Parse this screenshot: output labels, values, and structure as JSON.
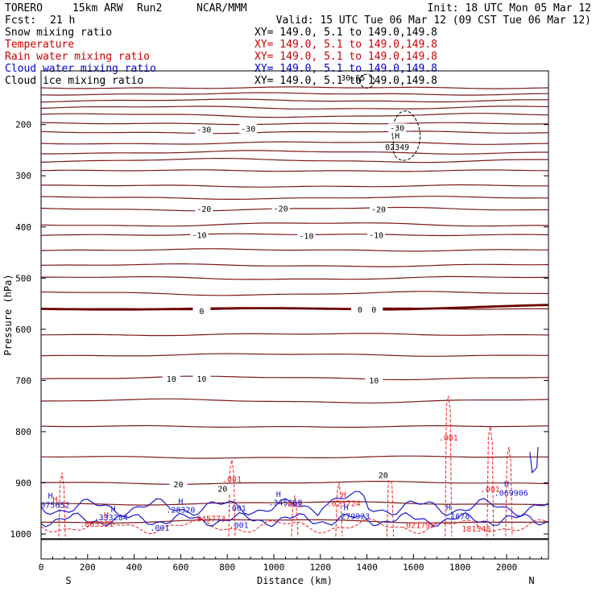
{
  "header": {
    "model": "TORERO",
    "grid": "15km ARW",
    "run": "Run2",
    "org": "NCAR/MMM",
    "init": "Init: 18 UTC Mon 05 Mar 12",
    "fcst_label": "Fcst:",
    "fcst_value": "21 h",
    "valid": "Valid: 15 UTC Tue 06 Mar 12 (09 CST Tue 06 Mar 12)"
  },
  "legend": [
    {
      "name": "Snow mixing ratio",
      "range": "XY= 149.0,  5.1 to 149.0,149.8",
      "color": "#000000"
    },
    {
      "name": "Temperature",
      "range": "XY= 149.0,  5.1 to 149.0,149.8",
      "color": "#cc0000"
    },
    {
      "name": "Rain water mixing ratio",
      "range": "XY= 149.0,  5.1 to 149.0,149.8",
      "color": "#cc0000"
    },
    {
      "name": "Cloud water mixing ratio",
      "range": "XY= 149.0,  5.1 to 149.0,149.8",
      "color": "#0000cc"
    },
    {
      "name": "Cloud ice mixing ratio",
      "range": "XY= 149.0,  5.1 to 149.0,149.8",
      "color": "#000000"
    }
  ],
  "chart_data": {
    "type": "line",
    "xlabel": "Distance (km)",
    "ylabel": "Pressure (hPa)",
    "xlim": [
      0,
      2180
    ],
    "ylim": [
      1050,
      100
    ],
    "y_scale": "pressure",
    "x_ticks": [
      0,
      200,
      400,
      600,
      800,
      1000,
      1200,
      1400,
      1600,
      1800,
      2000
    ],
    "y_ticks": [
      200,
      300,
      400,
      500,
      600,
      700,
      800,
      900,
      1000
    ],
    "x_endpoint_left": "S",
    "x_endpoint_right": "N",
    "surface_pressure": 1010,
    "colors": {
      "temperature": "#7a1a1a",
      "zero_isotherm": "#6b0000",
      "rain": "#ee2222",
      "cloud_water": "#1a1acc",
      "ice": "#000000"
    },
    "isotherm_levels": [
      {
        "value": -30,
        "p": 200
      },
      {
        "value": -30,
        "p": 320
      },
      {
        "value": -20,
        "p": 365
      },
      {
        "value": -10,
        "p": 415
      },
      {
        "value": 0,
        "p": 560
      },
      {
        "value": 10,
        "p": 695
      },
      {
        "value": 20,
        "p": 900
      }
    ],
    "temperature_lines_p": [
      128,
      140,
      153,
      167,
      182,
      198,
      215,
      236,
      254,
      270,
      290,
      320,
      343,
      365,
      395,
      415,
      445,
      475,
      500,
      530,
      560,
      610,
      650,
      695,
      740,
      790,
      850,
      900,
      940,
      975
    ],
    "temperature_labels": [
      {
        "text": "-30",
        "x": 700,
        "p": 210
      },
      {
        "text": "-30",
        "x": 890,
        "p": 208
      },
      {
        "text": "-30",
        "x": 1530,
        "p": 207
      },
      {
        "text": "-20",
        "x": 700,
        "p": 365
      },
      {
        "text": "-20",
        "x": 1030,
        "p": 364
      },
      {
        "text": "-20",
        "x": 1450,
        "p": 366
      },
      {
        "text": "-10",
        "x": 680,
        "p": 416
      },
      {
        "text": "-10",
        "x": 1140,
        "p": 418
      },
      {
        "text": "-10",
        "x": 1440,
        "p": 416
      },
      {
        "text": "0",
        "x": 690,
        "p": 565
      },
      {
        "text": "0",
        "x": 1370,
        "p": 562
      },
      {
        "text": "0",
        "x": 1430,
        "p": 562
      },
      {
        "text": "10",
        "x": 560,
        "p": 697
      },
      {
        "text": "10",
        "x": 690,
        "p": 697
      },
      {
        "text": "10",
        "x": 1430,
        "p": 700
      },
      {
        "text": "20",
        "x": 590,
        "p": 903
      },
      {
        "text": "20",
        "x": 780,
        "p": 912
      },
      {
        "text": "20",
        "x": 1470,
        "p": 885
      }
    ],
    "ice_labels": [
      {
        "text": "30.65",
        "x": 1340,
        "p": 108
      },
      {
        "text": "H",
        "x": 1530,
        "p": 222
      },
      {
        "text": "02349",
        "x": 1530,
        "p": 244
      }
    ],
    "rain_labels": [
      {
        "text": "H",
        "x": 1300,
        "p": 923
      },
      {
        "text": ".023724",
        "x": 1300,
        "p": 940
      },
      {
        "text": ".001",
        "x": 820,
        "p": 893
      },
      {
        "text": ".001",
        "x": 1750,
        "p": 812
      },
      {
        "text": ".001",
        "x": 1930,
        "p": 913
      },
      {
        "text": "H",
        "x": 60,
        "p": 932
      },
      {
        "text": "H",
        "x": 280,
        "p": 963
      },
      {
        "text": ".063391",
        "x": 240,
        "p": 980
      },
      {
        "text": ".045773",
        "x": 720,
        "p": 970
      },
      {
        "text": ".001",
        "x": 1080,
        "p": 942
      },
      {
        "text": ".021795",
        "x": 1620,
        "p": 983
      },
      {
        "text": "181545",
        "x": 1870,
        "p": 990
      }
    ],
    "cloud_labels": [
      {
        "text": "H",
        "x": 40,
        "p": 925
      },
      {
        "text": ".075652",
        "x": 50,
        "p": 943
      },
      {
        "text": "H",
        "x": 310,
        "p": 951
      },
      {
        "text": ".333284",
        "x": 300,
        "p": 968
      },
      {
        "text": "H",
        "x": 600,
        "p": 936
      },
      {
        "text": ".28320",
        "x": 600,
        "p": 953
      },
      {
        "text": ".001",
        "x": 510,
        "p": 988
      },
      {
        "text": ".001",
        "x": 850,
        "p": 983
      },
      {
        "text": ".001",
        "x": 840,
        "p": 950
      },
      {
        "text": "H",
        "x": 1020,
        "p": 922
      },
      {
        "text": ".345368",
        "x": 1050,
        "p": 939
      },
      {
        "text": "H",
        "x": 1310,
        "p": 948
      },
      {
        "text": ".279923",
        "x": 1340,
        "p": 965
      },
      {
        "text": "H",
        "x": 1750,
        "p": 948
      },
      {
        "text": ".1678",
        "x": 1790,
        "p": 965
      },
      {
        "text": "H",
        "x": 2000,
        "p": 902
      },
      {
        "text": ".069906",
        "x": 2020,
        "p": 920
      }
    ]
  }
}
